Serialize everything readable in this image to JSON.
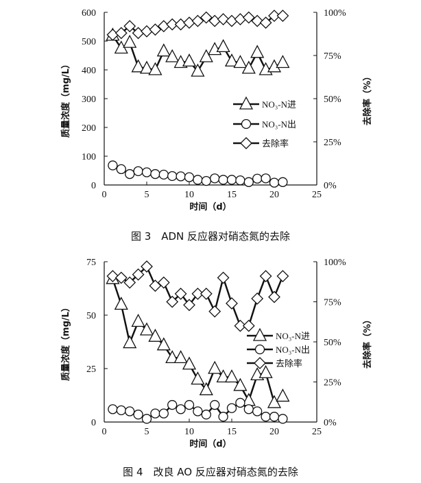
{
  "chart_data": [
    {
      "type": "line",
      "caption": "图 3　ADN 反应器对硝态氮的去除",
      "xlabel": "时间（d）",
      "ylabel": "质量浓度（mg/L）",
      "y2label": "去除率（%）",
      "xlim": [
        0,
        25
      ],
      "ylim": [
        0,
        600
      ],
      "y2lim": [
        0,
        100
      ],
      "xticks": [
        "0",
        "5",
        "10",
        "15",
        "20",
        "25"
      ],
      "yticks": [
        "0",
        "100",
        "200",
        "300",
        "400",
        "500",
        "600"
      ],
      "y2ticks": [
        "0%",
        "25%",
        "50%",
        "75%",
        "100%"
      ],
      "legend_position": "center-right",
      "x": [
        1,
        2,
        3,
        4,
        5,
        6,
        7,
        8,
        9,
        10,
        11,
        12,
        13,
        14,
        15,
        16,
        17,
        18,
        19,
        20,
        21
      ],
      "series": [
        {
          "name": "NO₃-N进",
          "marker": "triangle",
          "axis": "left",
          "values": [
            520,
            475,
            495,
            410,
            405,
            400,
            465,
            445,
            425,
            430,
            395,
            445,
            470,
            480,
            430,
            425,
            405,
            460,
            400,
            410,
            425
          ]
        },
        {
          "name": "NO₃-N出",
          "marker": "circle",
          "axis": "left",
          "values": [
            68,
            55,
            38,
            48,
            44,
            38,
            36,
            31,
            30,
            27,
            18,
            14,
            23,
            18,
            18,
            16,
            10,
            22,
            23,
            8,
            10
          ]
        },
        {
          "name": "去除率",
          "marker": "diamond",
          "axis": "right",
          "values": [
            87,
            88,
            92,
            88,
            89,
            90,
            92,
            93,
            93,
            94,
            95,
            97,
            95,
            96,
            95,
            96,
            97,
            95,
            94,
            98,
            98
          ]
        }
      ]
    },
    {
      "type": "line",
      "caption": "图 4　改良 AO 反应器对硝态氮的去除",
      "xlabel": "时间（d）",
      "ylabel": "质量浓度（mg/L）",
      "y2label": "去除率（%）",
      "xlim": [
        0,
        25
      ],
      "ylim": [
        0,
        75
      ],
      "y2lim": [
        0,
        100
      ],
      "xticks": [
        "0",
        "5",
        "10",
        "15",
        "20",
        "25"
      ],
      "yticks": [
        "0",
        "25",
        "50",
        "75"
      ],
      "y2ticks": [
        "0%",
        "25%",
        "50%",
        "75%",
        "100%"
      ],
      "legend_position": "center-right",
      "x": [
        1,
        2,
        3,
        4,
        5,
        6,
        7,
        8,
        9,
        10,
        11,
        12,
        13,
        14,
        15,
        16,
        17,
        18,
        19,
        20,
        21
      ],
      "series": [
        {
          "name": "NO₃-N进",
          "marker": "triangle",
          "axis": "left",
          "values": [
            67,
            55,
            37,
            47,
            43,
            40,
            36,
            30,
            30,
            27,
            20,
            15,
            25,
            21,
            21,
            17,
            10,
            22,
            23,
            9,
            12
          ]
        },
        {
          "name": "NO₃-N出",
          "marker": "circle",
          "axis": "left",
          "values": [
            6,
            5.5,
            5,
            3.5,
            1.5,
            4,
            4,
            8,
            6,
            8,
            5,
            3.5,
            8,
            2.5,
            6.5,
            9,
            6,
            5,
            2.5,
            2.5,
            1.5
          ]
        },
        {
          "name": "去除率",
          "marker": "diamond",
          "axis": "right",
          "values": [
            91,
            90,
            87,
            92,
            97,
            85,
            87,
            75,
            80,
            73,
            80,
            80,
            69,
            90,
            74,
            60,
            60,
            77,
            91,
            78,
            91
          ]
        }
      ]
    }
  ]
}
